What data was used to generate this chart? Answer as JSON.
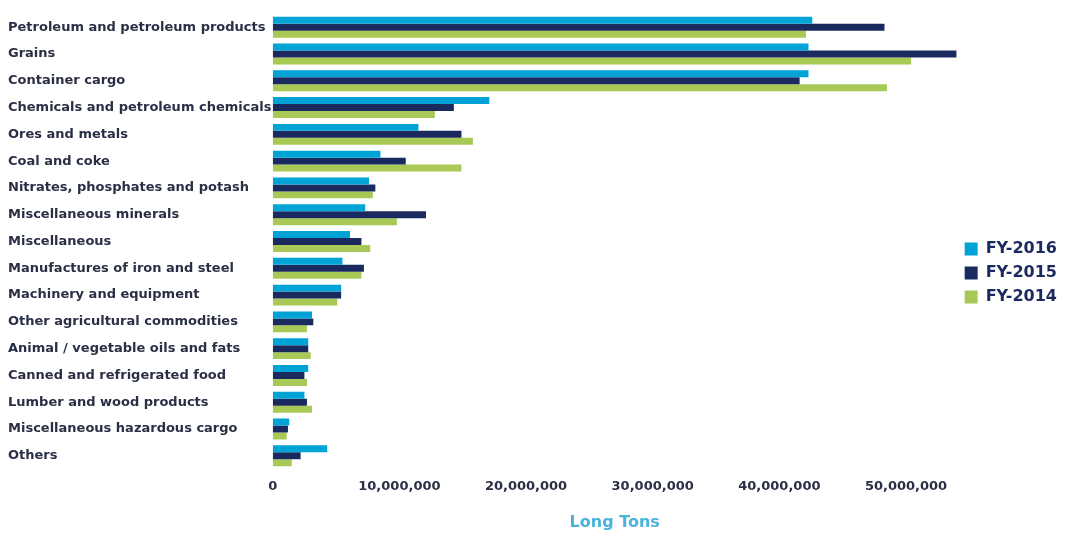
{
  "chart_data": {
    "type": "bar",
    "orientation": "horizontal",
    "xlabel": "Long Tons",
    "categories": [
      "Petroleum and petroleum products",
      "Grains",
      "Container cargo",
      "Chemicals and petroleum chemicals",
      "Ores and metals",
      "Coal and coke",
      "Nitrates, phosphates and potash",
      "Miscellaneous minerals",
      "Miscellaneous",
      "Manufactures of iron and steel",
      "Machinery and equipment",
      "Other agricultural commodities",
      "Animal / vegetable oils and fats",
      "Canned and refrigerated food",
      "Lumber and wood products",
      "Miscellaneous hazardous cargo",
      "Others"
    ],
    "series": [
      {
        "name": "FY-2016",
        "color": "#00a3d6",
        "values": [
          42600000,
          42300000,
          42300000,
          17100000,
          11500000,
          8500000,
          7600000,
          7300000,
          6100000,
          5500000,
          5400000,
          3100000,
          2800000,
          2800000,
          2500000,
          1300000,
          4300000
        ]
      },
      {
        "name": "FY-2015",
        "color": "#1b2a5e",
        "values": [
          48300000,
          54000000,
          41600000,
          14300000,
          14900000,
          10500000,
          8100000,
          12100000,
          7000000,
          7200000,
          5400000,
          3200000,
          2800000,
          2500000,
          2700000,
          1200000,
          2200000
        ]
      },
      {
        "name": "FY-2014",
        "color": "#a8c956",
        "values": [
          42100000,
          50400000,
          48500000,
          12800000,
          15800000,
          14900000,
          7900000,
          9800000,
          7700000,
          7000000,
          5100000,
          2700000,
          3000000,
          2700000,
          3100000,
          1100000,
          1500000
        ]
      }
    ],
    "xlim": [
      0,
      54000000
    ],
    "xticks": [
      {
        "value": 0,
        "label": "0"
      },
      {
        "value": 10000000,
        "label": "10,000,000"
      },
      {
        "value": 20000000,
        "label": "20,000,000"
      },
      {
        "value": 30000000,
        "label": "30,000,000"
      },
      {
        "value": 40000000,
        "label": "40,000,000"
      },
      {
        "value": 50000000,
        "label": "50,000,000"
      }
    ],
    "grid": false,
    "legend": "right"
  }
}
